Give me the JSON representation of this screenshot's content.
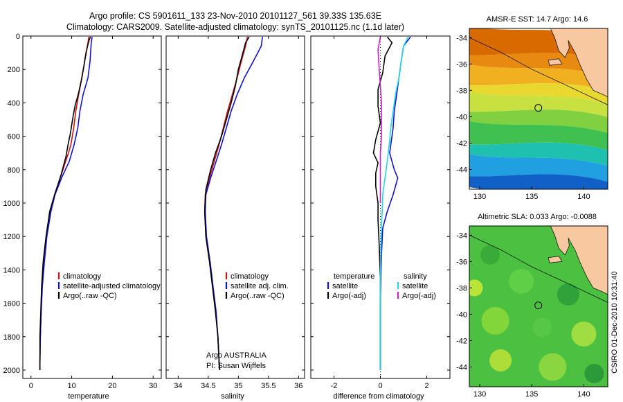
{
  "header": {
    "line1": "Argo profile: CS 5901611_133 23-Nov-2010 20101127_561 39.33S 135.63E",
    "line2": "Climatology: CARS2009. Satellite-adjusted climatology: synTS_20101125.nc (1.1d later)"
  },
  "colors": {
    "climatology": "#d01010",
    "satellite": "#1010d0",
    "argo": "#000000",
    "satellite_salinity": "#20d8e8",
    "argo_salinity": "#d020d0"
  },
  "chart_data": [
    {
      "id": "temperature",
      "type": "line",
      "xlabel": "temperature",
      "xlim": [
        -2,
        32
      ],
      "ylim": [
        2050,
        0
      ],
      "xticks": [
        0,
        10,
        20,
        30
      ],
      "yticks": [
        0,
        200,
        400,
        600,
        800,
        1000,
        1200,
        1400,
        1600,
        1800,
        2000
      ],
      "legend": [
        "climatology",
        "satellite-adjusted climatology",
        "Argo(..raw -QC)"
      ],
      "series": [
        {
          "name": "climatology",
          "color": "#d01010",
          "x": [
            14.2,
            14.0,
            13.2,
            12.5,
            11.7,
            11.0,
            10.5,
            9.8,
            9.2,
            8.5,
            7.2,
            5.8,
            4.8,
            3.8,
            3.2,
            2.7,
            2.5,
            2.3,
            2.2,
            2.2
          ],
          "y": [
            5,
            40,
            150,
            250,
            350,
            450,
            550,
            650,
            700,
            750,
            850,
            950,
            1050,
            1200,
            1350,
            1500,
            1650,
            1800,
            1950,
            2000
          ]
        },
        {
          "name": "satellite-adjusted climatology",
          "color": "#1010d0",
          "x": [
            15.0,
            14.8,
            14.5,
            14.0,
            12.8,
            12.0,
            11.5,
            10.6,
            10.0,
            9.4,
            7.5,
            5.9,
            4.9,
            3.9,
            3.3,
            2.8,
            2.5,
            2.3,
            2.2,
            2.2
          ],
          "y": [
            5,
            40,
            150,
            250,
            350,
            450,
            550,
            650,
            700,
            750,
            850,
            950,
            1050,
            1200,
            1350,
            1500,
            1650,
            1800,
            1950,
            2000
          ]
        },
        {
          "name": "Argo(..raw -QC)",
          "color": "#000000",
          "x": [
            14.6,
            14.2,
            13.5,
            13.0,
            12.4,
            11.7,
            10.8,
            10.2,
            9.7,
            9.1,
            8.6,
            7.4,
            5.8,
            4.6,
            3.7,
            3.0,
            2.6,
            2.4,
            2.2,
            2.2,
            2.2
          ],
          "y": [
            5,
            30,
            100,
            180,
            260,
            340,
            420,
            500,
            580,
            650,
            720,
            830,
            950,
            1050,
            1200,
            1350,
            1500,
            1650,
            1800,
            1950,
            2000
          ]
        }
      ]
    },
    {
      "id": "salinity",
      "type": "line",
      "xlabel": "salinity",
      "xlim": [
        33.8,
        36.1
      ],
      "ylim": [
        2050,
        0
      ],
      "xticks": [
        34,
        34.5,
        35,
        35.5,
        36
      ],
      "legend": [
        "climatology",
        "satellite adj. clim.",
        "Argo(..raw -QC)"
      ],
      "annotations": [
        "Argo AUSTRALIA",
        "PI: Susan Wijffels"
      ],
      "series": [
        {
          "name": "climatology",
          "color": "#d01010",
          "x": [
            35.15,
            35.12,
            35.05,
            34.98,
            34.9,
            34.82,
            34.75,
            34.68,
            34.6,
            34.52,
            34.45,
            34.44,
            34.46,
            34.52,
            34.57,
            34.62,
            34.66,
            34.68,
            34.69
          ],
          "y": [
            5,
            60,
            150,
            250,
            350,
            450,
            550,
            650,
            750,
            850,
            950,
            1050,
            1200,
            1350,
            1500,
            1650,
            1800,
            1950,
            2000
          ]
        },
        {
          "name": "satellite adj. clim.",
          "color": "#1010d0",
          "x": [
            35.4,
            35.38,
            35.25,
            35.1,
            34.98,
            34.88,
            34.8,
            34.72,
            34.63,
            34.54,
            34.46,
            34.45,
            34.47,
            34.53,
            34.58,
            34.63,
            34.66,
            34.68,
            34.69
          ],
          "y": [
            5,
            60,
            150,
            250,
            350,
            450,
            550,
            650,
            750,
            850,
            950,
            1050,
            1200,
            1350,
            1500,
            1650,
            1800,
            1950,
            2000
          ]
        },
        {
          "name": "Argo(..raw -QC)",
          "color": "#000000",
          "x": [
            35.18,
            35.12,
            35.06,
            35.0,
            34.95,
            34.88,
            34.8,
            34.72,
            34.62,
            34.54,
            34.46,
            34.44,
            34.46,
            34.52,
            34.57,
            34.62,
            34.66,
            34.68,
            34.69
          ],
          "y": [
            5,
            40,
            120,
            200,
            300,
            400,
            500,
            600,
            700,
            800,
            920,
            1050,
            1200,
            1350,
            1500,
            1650,
            1800,
            1950,
            2000
          ]
        }
      ]
    },
    {
      "id": "difference",
      "type": "line",
      "xlabel": "difference from climatology",
      "xlim": [
        -3,
        3
      ],
      "ylim": [
        2050,
        0
      ],
      "xticks": [
        -2,
        0,
        2
      ],
      "legend_left": {
        "title": "temperature",
        "items": [
          "satellite",
          "Argo(-adj)"
        ]
      },
      "legend_right": {
        "title": "salinity",
        "items": [
          "satellite",
          "Argo(-adj)"
        ]
      },
      "series": [
        {
          "name": "temperature satellite",
          "color": "#1010d0",
          "x": [
            1.3,
            1.0,
            0.9,
            0.8,
            0.7,
            0.6,
            0.55,
            0.45,
            0.4,
            0.6,
            0.75,
            0.55,
            0.3,
            0.1,
            0.05,
            0.02,
            0.0,
            0.0,
            0.0,
            0.0
          ],
          "y": [
            5,
            60,
            150,
            250,
            350,
            450,
            550,
            650,
            700,
            800,
            850,
            950,
            1050,
            1150,
            1300,
            1450,
            1600,
            1800,
            1950,
            2000
          ]
        },
        {
          "name": "temperature Argo(-adj)",
          "color": "#000000",
          "x": [
            0.3,
            0.5,
            0.2,
            0.1,
            -0.1,
            -0.1,
            0.0,
            -0.2,
            -0.3,
            -0.1,
            -0.2,
            -0.2,
            -0.1,
            -0.1,
            -0.05,
            0.0,
            0.0,
            0.0,
            0.0
          ],
          "y": [
            5,
            40,
            120,
            220,
            320,
            420,
            520,
            620,
            700,
            760,
            820,
            900,
            1000,
            1100,
            1250,
            1450,
            1650,
            1850,
            2000
          ]
        },
        {
          "name": "salinity satellite",
          "color": "#20d8e8",
          "x": [
            1.2,
            1.0,
            0.9,
            0.8,
            0.65,
            0.55,
            0.45,
            0.38,
            0.3,
            0.2,
            0.1,
            0.08,
            0.04,
            0.02,
            0.0,
            0.0,
            0.0,
            0.0
          ],
          "y": [
            5,
            60,
            150,
            250,
            350,
            450,
            550,
            650,
            750,
            850,
            950,
            1050,
            1150,
            1300,
            1450,
            1600,
            1800,
            2000
          ]
        },
        {
          "name": "salinity Argo(-adj)",
          "color": "#d020d0",
          "x": [
            0.0,
            -0.1,
            -0.05,
            0.0,
            0.05,
            0.05,
            0.05,
            0.0,
            0.0,
            0.0,
            0.0
          ],
          "y": [
            5,
            80,
            200,
            300,
            400,
            500,
            600,
            700,
            800,
            900,
            1000
          ]
        }
      ]
    },
    {
      "id": "sst_map",
      "type": "heatmap",
      "title": "AMSR-E SST: 14.7 Argo: 14.6",
      "xlim": [
        129,
        142.3
      ],
      "ylim": [
        -45.5,
        -33.3
      ],
      "xticks": [
        130,
        135,
        140
      ],
      "yticks": [
        -34,
        -36,
        -38,
        -40,
        -42,
        -44
      ],
      "marker": {
        "lon": 135.63,
        "lat": -39.33
      }
    },
    {
      "id": "sla_map",
      "type": "heatmap",
      "title": "Altimetric SLA: 0.033 Argo: -0.0088",
      "xlim": [
        129,
        142.3
      ],
      "ylim": [
        -45.5,
        -33.3
      ],
      "xticks": [
        130,
        135,
        140
      ],
      "yticks": [
        -34,
        -36,
        -38,
        -40,
        -42,
        -44
      ],
      "marker": {
        "lon": 135.63,
        "lat": -39.33
      }
    }
  ],
  "side_label": "CSIRO 01-Dec-2010 10:31:40"
}
